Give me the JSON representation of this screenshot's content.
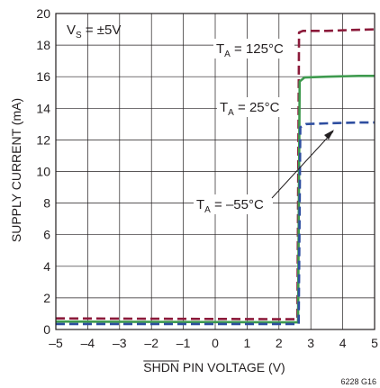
{
  "chart_data": {
    "type": "line",
    "title": "",
    "xlabel_overbar": "SHDN",
    "xlabel_rest": " PIN VOLTAGE (V)",
    "ylabel": "SUPPLY CURRENT (mA)",
    "xlim": [
      -5,
      5
    ],
    "ylim": [
      0,
      20
    ],
    "x_ticks": [
      -5,
      -4,
      -3,
      -2,
      -1,
      0,
      1,
      2,
      3,
      4,
      5
    ],
    "y_ticks": [
      0,
      2,
      4,
      6,
      8,
      10,
      12,
      14,
      16,
      18,
      20
    ],
    "x_tick_labels": [
      "–5",
      "–4",
      "–3",
      "–2",
      "–1",
      "0",
      "1",
      "2",
      "3",
      "4",
      "5"
    ],
    "y_tick_labels": [
      "0",
      "2",
      "4",
      "6",
      "8",
      "10",
      "12",
      "14",
      "16",
      "18",
      "20"
    ],
    "grid": true,
    "legend": "none",
    "annotation_supply": {
      "main": "V",
      "sub": "S",
      "rest": " = ±5V"
    },
    "series": [
      {
        "label_main": "T",
        "label_sub": "A",
        "label_rest": " = 125°C",
        "color": "#8b1a3a",
        "dash": "10,5",
        "points": [
          [
            -5,
            0.7
          ],
          [
            2.5,
            0.65
          ],
          [
            2.58,
            0.65
          ],
          [
            2.63,
            18.8
          ],
          [
            2.75,
            18.9
          ],
          [
            3.5,
            18.9
          ],
          [
            4.2,
            18.95
          ],
          [
            5,
            19.0
          ]
        ]
      },
      {
        "label_main": "T",
        "label_sub": "A",
        "label_rest": " = 25°C",
        "color": "#3e9a4e",
        "dash": "",
        "points": [
          [
            -5,
            0.5
          ],
          [
            2.5,
            0.45
          ],
          [
            2.6,
            0.45
          ],
          [
            2.65,
            15.7
          ],
          [
            2.8,
            15.95
          ],
          [
            3.5,
            16.0
          ],
          [
            4.5,
            16.05
          ],
          [
            5,
            16.05
          ]
        ]
      },
      {
        "label_main": "T",
        "label_sub": "A",
        "label_rest": " = –55°C",
        "color": "#2e4ea0",
        "dash": "10,5",
        "points": [
          [
            -5,
            0.35
          ],
          [
            2.5,
            0.35
          ],
          [
            2.62,
            0.35
          ],
          [
            2.67,
            12.8
          ],
          [
            2.85,
            13.0
          ],
          [
            3.5,
            13.05
          ],
          [
            4.5,
            13.1
          ],
          [
            5,
            13.1
          ]
        ]
      }
    ],
    "figure_code": "6228 G16"
  }
}
